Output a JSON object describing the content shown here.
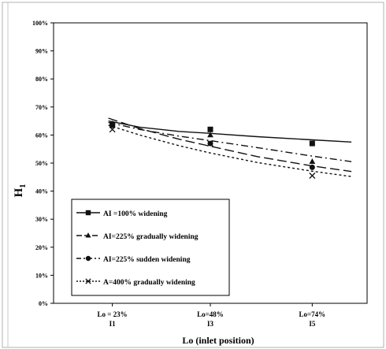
{
  "chart_data": {
    "type": "line",
    "title": "",
    "xlabel": "Lo (inlet position)",
    "ylabel": "H",
    "ylabel_subscript": "1",
    "x_positions": [
      23,
      48,
      74
    ],
    "categories": [
      {
        "top": "Lo = 23%",
        "bottom": "I1"
      },
      {
        "top": "Lo=48%",
        "bottom": "I3"
      },
      {
        "top": "Lo=74%",
        "bottom": "I5"
      }
    ],
    "xlim": [
      8,
      88
    ],
    "ylim": [
      0,
      100
    ],
    "yticks": [
      "0%",
      "10%",
      "20%",
      "30%",
      "40%",
      "50%",
      "60%",
      "70%",
      "80%",
      "90%",
      "100%"
    ],
    "grid": false,
    "legend_position": "bottom-left",
    "series": [
      {
        "name": "AI =100% widening",
        "marker": "square",
        "line_style": "solid",
        "points": [
          [
            23,
            63.5
          ],
          [
            48,
            62
          ],
          [
            74,
            57
          ]
        ],
        "trend": [
          [
            22,
            65
          ],
          [
            30,
            62.8
          ],
          [
            40,
            61.3
          ],
          [
            48,
            60.6
          ],
          [
            60,
            59.4
          ],
          [
            74,
            58.3
          ],
          [
            84,
            57.5
          ]
        ]
      },
      {
        "name": "AI=225% gradually widening",
        "marker": "triangle",
        "line_style": "long-dash",
        "points": [
          [
            23,
            64
          ],
          [
            48,
            60
          ],
          [
            74,
            50.5
          ]
        ],
        "trend": [
          [
            22,
            66
          ],
          [
            30,
            62.3
          ],
          [
            40,
            58.5
          ],
          [
            48,
            56
          ],
          [
            60,
            52.3
          ],
          [
            74,
            49
          ],
          [
            84,
            47
          ]
        ]
      },
      {
        "name": "AI=225% sudden widening",
        "marker": "circle",
        "line_style": "dash-dot",
        "points": [
          [
            23,
            64
          ],
          [
            48,
            57
          ],
          [
            74,
            48.5
          ]
        ],
        "trend": [
          [
            22,
            64.5
          ],
          [
            30,
            62
          ],
          [
            40,
            59.6
          ],
          [
            48,
            58
          ],
          [
            60,
            55.5
          ],
          [
            74,
            52.5
          ],
          [
            84,
            50.5
          ]
        ]
      },
      {
        "name": "A=400% gradually widening",
        "marker": "x",
        "line_style": "dotted",
        "points": [
          [
            23,
            62
          ],
          [
            48,
            57
          ],
          [
            74,
            45.5
          ]
        ],
        "trend": [
          [
            22,
            63.5
          ],
          [
            30,
            60
          ],
          [
            40,
            56.2
          ],
          [
            48,
            53.6
          ],
          [
            60,
            50.2
          ],
          [
            74,
            47.1
          ],
          [
            84,
            45.2
          ]
        ]
      }
    ],
    "colors": {
      "series": "#111111",
      "axis": "#000000",
      "background": "#ffffff"
    }
  }
}
